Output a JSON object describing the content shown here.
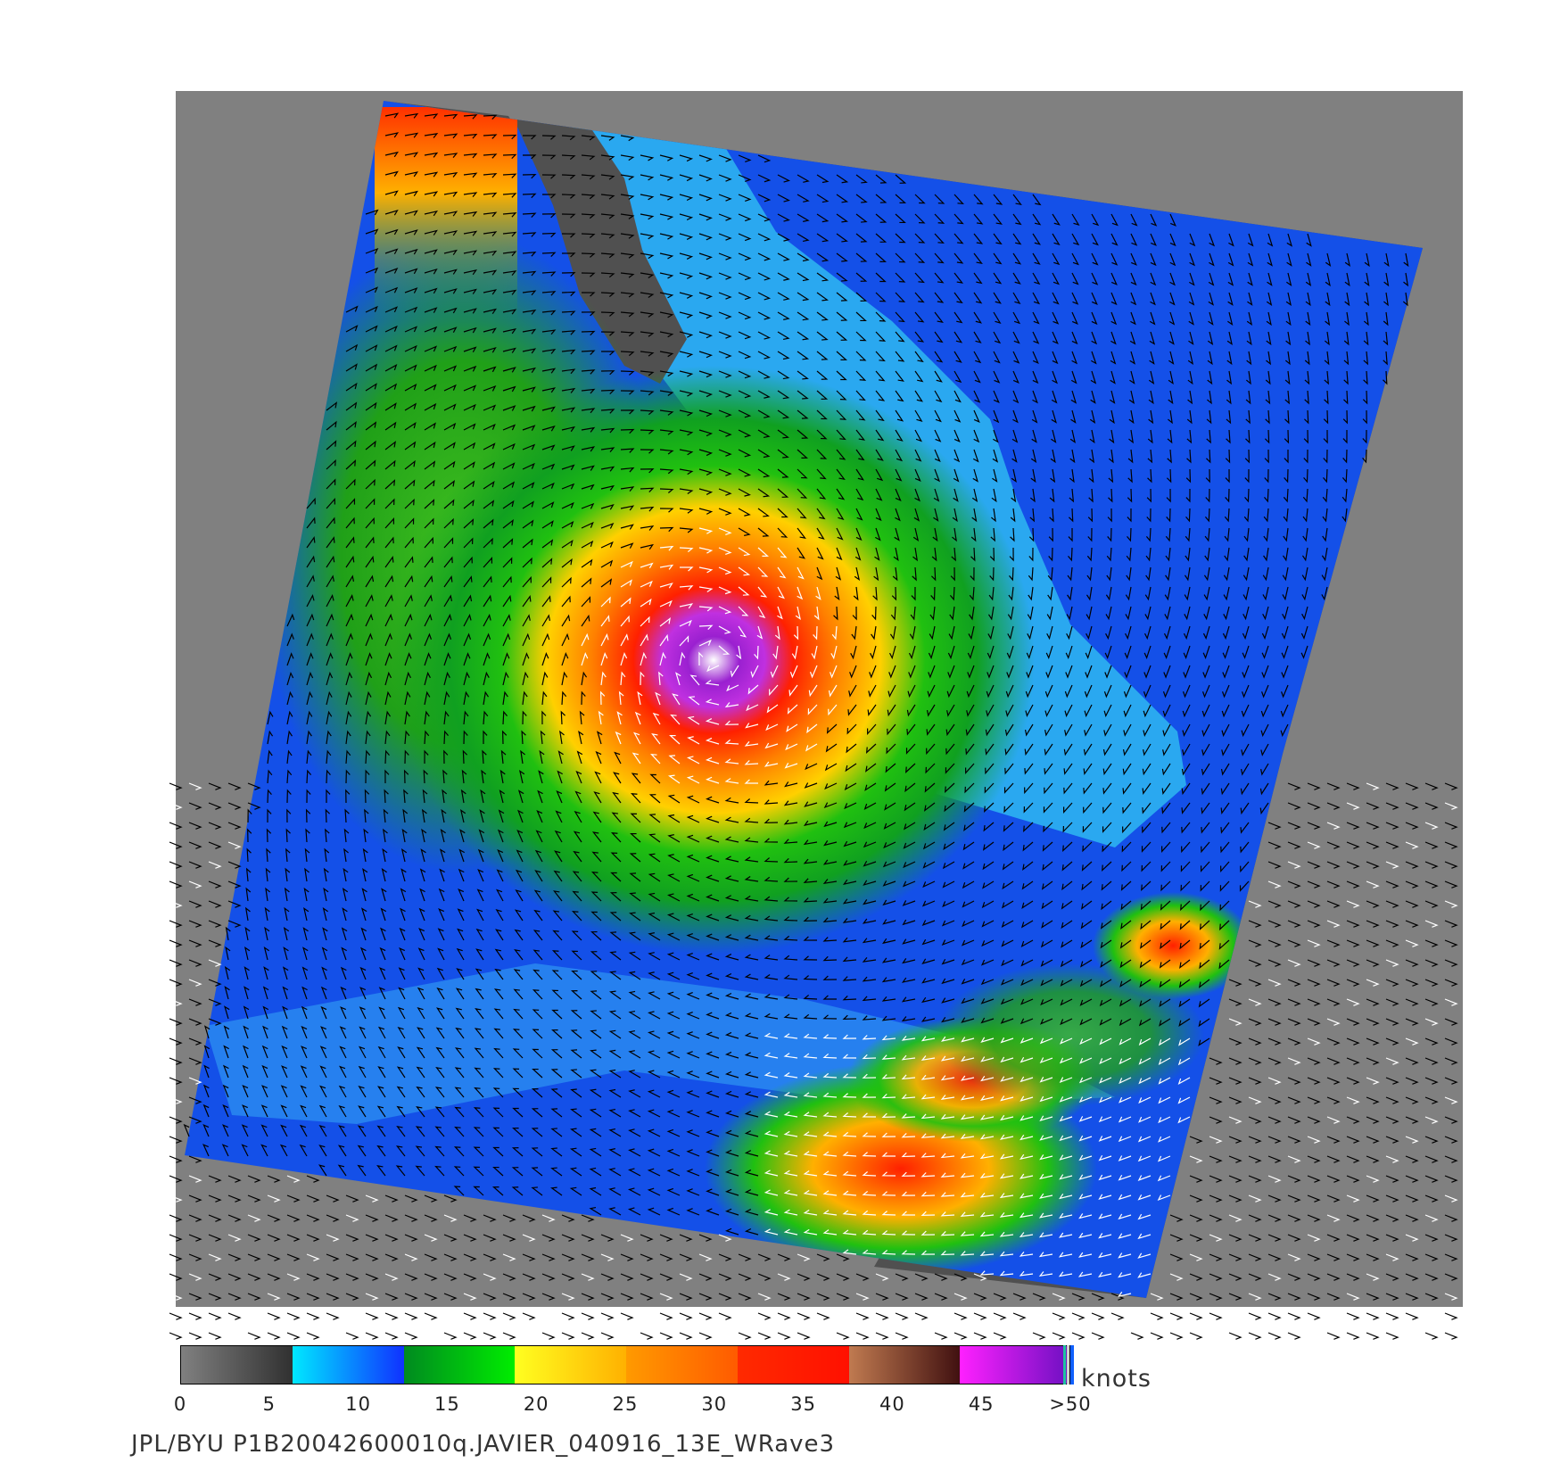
{
  "image": {
    "background_outer": "#808080",
    "background_land": "#505050"
  },
  "colorbar": {
    "units": "knots",
    "ticks": [
      "0",
      "5",
      "10",
      "15",
      "20",
      "25",
      "30",
      "35",
      "40",
      "45",
      ">50"
    ],
    "segments": [
      {
        "from": "#808080",
        "to": "#303030"
      },
      {
        "from": "#00e8ff",
        "to": "#1030ff"
      },
      {
        "from": "#008a20",
        "to": "#00ee00"
      },
      {
        "from": "#ffff20",
        "to": "#ffb000"
      },
      {
        "from": "#ff9a00",
        "to": "#ff5a00"
      },
      {
        "from": "#ff2a00",
        "to": "#ff1000"
      },
      {
        "from": "#c07a50",
        "to": "#401010"
      },
      {
        "from": "#ff20ff",
        "to": "#6a10c0"
      }
    ]
  },
  "caption": "JPL/BYU  P1B20042600010q.JAVIER_040916_13E_WRave3"
}
